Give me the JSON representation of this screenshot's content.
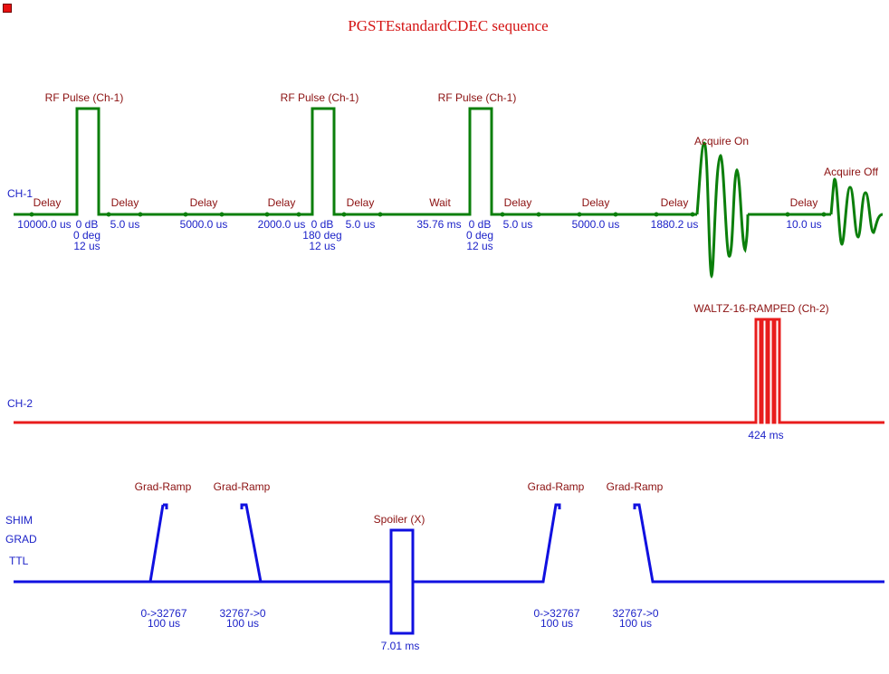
{
  "title": "PGSTEstandardCDEC sequence",
  "colors": {
    "ch1": "#0b7f0b",
    "ch2": "#e81c1c",
    "grad": "#1010e0",
    "label": "#8b1010",
    "value": "#1c22c8",
    "title": "#d41414"
  },
  "channels": {
    "ch1": "CH-1",
    "ch2": "CH-2",
    "shim": "SHIM",
    "grad": "GRAD",
    "ttl": "TTL"
  },
  "ch1": {
    "pulses": [
      {
        "label": "RF Pulse (Ch-1)",
        "power": "0 dB",
        "phase": "0 deg",
        "duration": "12 us"
      },
      {
        "label": "RF Pulse (Ch-1)",
        "power": "0 dB",
        "phase": "180 deg",
        "duration": "12 us"
      },
      {
        "label": "RF Pulse (Ch-1)",
        "power": "0 dB",
        "phase": "0 deg",
        "duration": "12 us"
      }
    ],
    "delays": [
      {
        "label": "Delay",
        "value": "10000.0 us"
      },
      {
        "label": "Delay",
        "value": "5.0 us"
      },
      {
        "label": "Delay",
        "value": "5000.0 us"
      },
      {
        "label": "Delay",
        "value": "2000.0 us"
      },
      {
        "label": "Delay",
        "value": "5.0 us"
      },
      {
        "label": "Wait",
        "value": "35.76 ms"
      },
      {
        "label": "Delay",
        "value": "5.0 us"
      },
      {
        "label": "Delay",
        "value": "5000.0 us"
      },
      {
        "label": "Delay",
        "value": "1880.2 us"
      },
      {
        "label": "Delay",
        "value": "10.0 us"
      }
    ],
    "acquire_on": "Acquire On",
    "acquire_off": "Acquire Off"
  },
  "ch2": {
    "label": "WALTZ-16-RAMPED (Ch-2)",
    "duration": "424 ms"
  },
  "grad": {
    "ramps": [
      {
        "label": "Grad-Ramp",
        "range": "0->32767",
        "duration": "100 us"
      },
      {
        "label": "Grad-Ramp",
        "range": "32767->0",
        "duration": "100 us"
      },
      {
        "label": "Grad-Ramp",
        "range": "0->32767",
        "duration": "100 us"
      },
      {
        "label": "Grad-Ramp",
        "range": "32767->0",
        "duration": "100 us"
      }
    ],
    "spoiler": {
      "label": "Spoiler (X)",
      "duration": "7.01 ms"
    }
  }
}
